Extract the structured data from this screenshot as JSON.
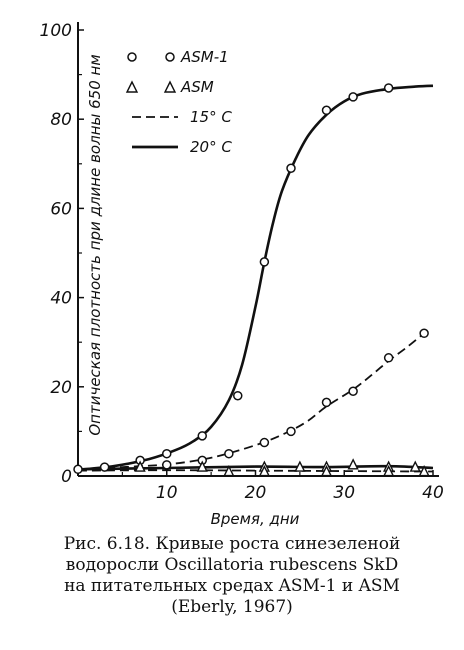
{
  "chart_data": {
    "type": "line",
    "xlabel": "Время, дни",
    "ylabel": "Оптическая плотность при длине волны 650 нм",
    "xlim": [
      0,
      40
    ],
    "ylim": [
      0,
      100
    ],
    "xticks": [
      "10",
      "20",
      "30",
      "40"
    ],
    "yticks": [
      "0",
      "20",
      "40",
      "60",
      "80",
      "100"
    ],
    "legend": {
      "position": "top-left",
      "entries": [
        {
          "label": "ASM-1",
          "marker": "circle"
        },
        {
          "label": "ASM",
          "marker": "triangle"
        },
        {
          "label": "15° C",
          "line": "dashed"
        },
        {
          "label": "20° C",
          "line": "solid"
        }
      ]
    },
    "series": [
      {
        "name": "ASM-1, 20° C",
        "marker": "circle",
        "line": "solid",
        "points": [
          [
            0,
            1.5
          ],
          [
            3,
            2
          ],
          [
            7,
            3.5
          ],
          [
            10,
            5
          ],
          [
            14,
            9
          ],
          [
            18,
            18
          ],
          [
            21,
            48
          ],
          [
            24,
            69
          ],
          [
            28,
            82
          ],
          [
            31,
            85
          ],
          [
            35,
            87
          ]
        ],
        "curve": [
          [
            0,
            1.4
          ],
          [
            4,
            2.2
          ],
          [
            8,
            3.8
          ],
          [
            11,
            5.8
          ],
          [
            13,
            7.8
          ],
          [
            15,
            11
          ],
          [
            17,
            17
          ],
          [
            18.5,
            25
          ],
          [
            20,
            38
          ],
          [
            21,
            48
          ],
          [
            22,
            57
          ],
          [
            23,
            64
          ],
          [
            24.5,
            71
          ],
          [
            26,
            76.5
          ],
          [
            28,
            81
          ],
          [
            30,
            84
          ],
          [
            32,
            85.7
          ],
          [
            35,
            86.8
          ],
          [
            38,
            87.3
          ],
          [
            40,
            87.5
          ]
        ]
      },
      {
        "name": "ASM-1, 15° C",
        "marker": "circle",
        "line": "dashed",
        "points": [
          [
            10,
            2.5
          ],
          [
            14,
            3.5
          ],
          [
            17,
            5
          ],
          [
            21,
            7.5
          ],
          [
            24,
            10
          ],
          [
            28,
            16.5
          ],
          [
            31,
            19
          ],
          [
            35,
            26.5
          ],
          [
            39,
            32
          ]
        ],
        "curve": [
          [
            0,
            1.5
          ],
          [
            5,
            2
          ],
          [
            10,
            2.6
          ],
          [
            14,
            3.7
          ],
          [
            17,
            5.1
          ],
          [
            21,
            7.6
          ],
          [
            24,
            10.2
          ],
          [
            26,
            12.5
          ],
          [
            28,
            15.6
          ],
          [
            31,
            19.4
          ],
          [
            33,
            22.5
          ],
          [
            35,
            25.8
          ],
          [
            37,
            28.8
          ],
          [
            39,
            32
          ]
        ]
      },
      {
        "name": "ASM, 20° C",
        "marker": "triangle",
        "line": "solid",
        "points": [
          [
            7,
            2
          ],
          [
            14,
            2
          ],
          [
            21,
            2
          ],
          [
            25,
            2
          ],
          [
            28,
            2
          ],
          [
            31,
            2.5
          ],
          [
            35,
            2
          ],
          [
            38,
            2
          ]
        ],
        "curve": [
          [
            0,
            1.5
          ],
          [
            10,
            1.8
          ],
          [
            20,
            2.1
          ],
          [
            28,
            2
          ],
          [
            35,
            2.2
          ],
          [
            40,
            1.8
          ]
        ]
      },
      {
        "name": "ASM, 15° C",
        "marker": "triangle",
        "line": "dashed",
        "points": [
          [
            17,
            1
          ],
          [
            21,
            1
          ],
          [
            28,
            1
          ],
          [
            35,
            1
          ],
          [
            39,
            1
          ]
        ],
        "curve": [
          [
            0,
            1.2
          ],
          [
            10,
            1.3
          ],
          [
            20,
            1.2
          ],
          [
            30,
            1.1
          ],
          [
            40,
            1
          ]
        ]
      }
    ]
  },
  "caption": "Рис. 6.18. Кривые роста синезеленой\nводоросли Oscillatoria rubescens SkD\nна питательных средах ASM-1 и ASM\n(Eberly, 1967)"
}
